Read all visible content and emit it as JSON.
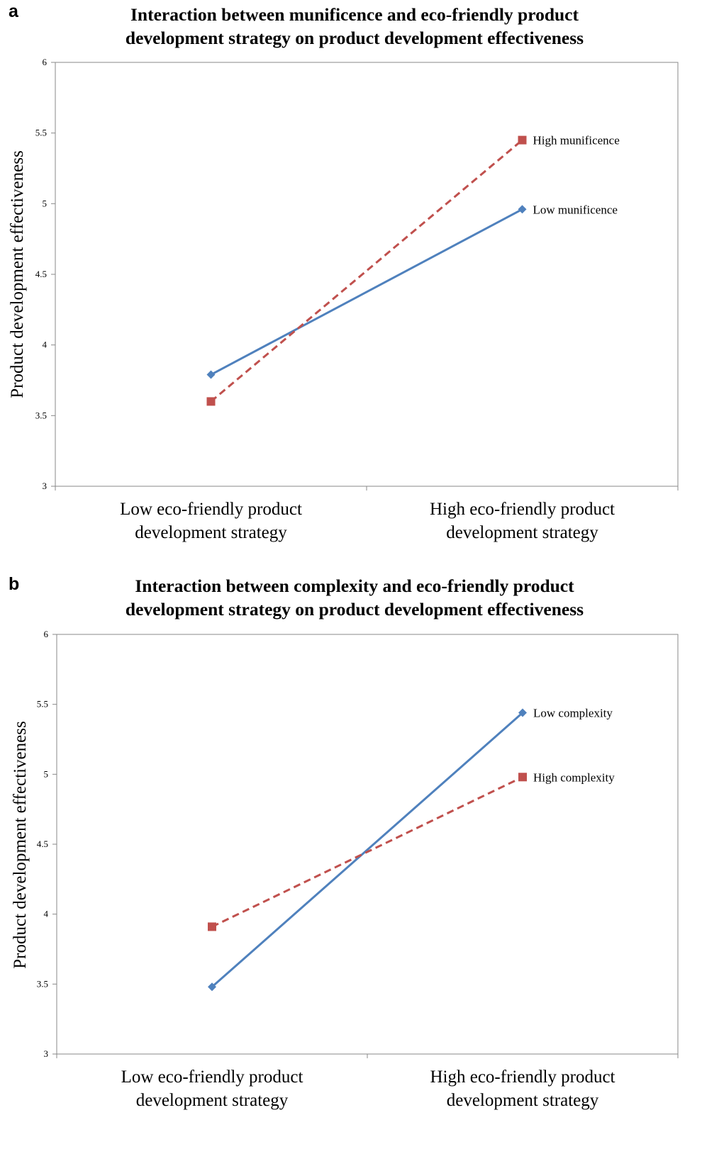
{
  "chart_data": [
    {
      "panel": "a",
      "type": "line",
      "title_lines": [
        "Interaction between munificence and eco-friendly product",
        "development strategy on product development effectiveness"
      ],
      "ylabel": "Product development effectiveness",
      "xlabel": "",
      "ylim": [
        3,
        6
      ],
      "yticks": [
        "3",
        "3.5",
        "4",
        "4.5",
        "5",
        "5.5",
        "6"
      ],
      "categories": [
        [
          "Low eco-friendly product",
          "development strategy"
        ],
        [
          "High eco-friendly product",
          "development strategy"
        ]
      ],
      "series": [
        {
          "name": "Low munificence",
          "values": [
            3.79,
            4.96
          ],
          "color": "#4f81bd",
          "marker": "diamond",
          "dash": false
        },
        {
          "name": "High munificence",
          "values": [
            3.6,
            5.45
          ],
          "color": "#c0504d",
          "marker": "square",
          "dash": true
        }
      ],
      "grid": false,
      "legend": "inline-right"
    },
    {
      "panel": "b",
      "type": "line",
      "title_lines": [
        "Interaction between complexity and eco-friendly product",
        "development strategy on product development effectiveness"
      ],
      "ylabel": "Product development effectiveness",
      "xlabel": "",
      "ylim": [
        3,
        6
      ],
      "yticks": [
        "3",
        "3.5",
        "4",
        "4.5",
        "5",
        "5.5",
        "6"
      ],
      "categories": [
        [
          "Low eco-friendly product",
          "development strategy"
        ],
        [
          "High eco-friendly product",
          "development strategy"
        ]
      ],
      "series": [
        {
          "name": "Low complexity",
          "values": [
            3.48,
            5.44
          ],
          "color": "#4f81bd",
          "marker": "diamond",
          "dash": false
        },
        {
          "name": "High complexity",
          "values": [
            3.91,
            4.98
          ],
          "color": "#c0504d",
          "marker": "square",
          "dash": true
        }
      ],
      "grid": false,
      "legend": "inline-right"
    }
  ]
}
